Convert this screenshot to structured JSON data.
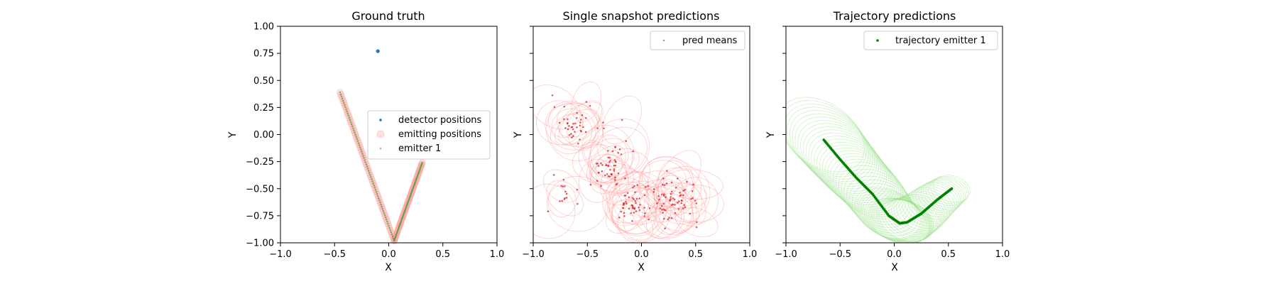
{
  "chart_data": [
    {
      "type": "scatter",
      "title": "Ground truth",
      "xlabel": "X",
      "ylabel": "Y",
      "xlim": [
        -1.0,
        1.0
      ],
      "ylim": [
        -1.0,
        1.0
      ],
      "xticks": [
        "−1.0",
        "−0.5",
        "0.0",
        "0.5",
        "1.0"
      ],
      "yticks": [
        "−1.00",
        "−0.75",
        "−0.50",
        "−0.25",
        "0.00",
        "0.25",
        "0.50",
        "0.75",
        "1.00"
      ],
      "legend_position": "center-right",
      "series": [
        {
          "name": "detector positions",
          "color": "#1f77b4",
          "points": [
            [
              -0.1,
              0.77
            ]
          ]
        },
        {
          "name": "emitting positions",
          "color": "#ff9896",
          "path": [
            [
              -0.45,
              0.39
            ],
            [
              0.05,
              -0.98
            ],
            [
              0.31,
              -0.26
            ]
          ]
        },
        {
          "name": "emitter 1",
          "color": "#2ca02c",
          "path": [
            [
              -0.45,
              0.39
            ],
            [
              0.05,
              -0.98
            ],
            [
              0.31,
              -0.26
            ]
          ]
        }
      ]
    },
    {
      "type": "scatter",
      "title": "Single snapshot predictions",
      "xlabel": "X",
      "ylabel": "Y",
      "xlim": [
        -1.0,
        1.0
      ],
      "ylim": [
        -1.0,
        1.0
      ],
      "xticks": [
        "−1.0",
        "−0.5",
        "0.0",
        "0.5",
        "1.0"
      ],
      "legend_position": "top-right",
      "series": [
        {
          "name": "pred means",
          "color": "#d62728",
          "clusters": [
            {
              "center": [
                -0.6,
                0.1
              ],
              "spread": [
                0.18,
                0.15
              ],
              "n": 40
            },
            {
              "center": [
                -0.3,
                -0.3
              ],
              "spread": [
                0.15,
                0.18
              ],
              "n": 50
            },
            {
              "center": [
                -0.1,
                -0.65
              ],
              "spread": [
                0.12,
                0.15
              ],
              "n": 45
            },
            {
              "center": [
                0.3,
                -0.6
              ],
              "spread": [
                0.2,
                0.18
              ],
              "n": 70
            },
            {
              "center": [
                -0.7,
                -0.5
              ],
              "spread": [
                0.1,
                0.1
              ],
              "n": 15
            }
          ]
        }
      ],
      "ellipse_color": "#ff9896"
    },
    {
      "type": "line",
      "title": "Trajectory predictions",
      "xlabel": "X",
      "ylabel": "Y",
      "xlim": [
        -1.0,
        1.0
      ],
      "ylim": [
        -1.0,
        1.0
      ],
      "xticks": [
        "−1.0",
        "−0.5",
        "0.0",
        "0.5",
        "1.0"
      ],
      "legend_position": "top-right",
      "series": [
        {
          "name": "trajectory emitter 1",
          "color": "#008000",
          "path": [
            [
              -0.65,
              -0.05
            ],
            [
              -0.5,
              -0.23
            ],
            [
              -0.35,
              -0.4
            ],
            [
              -0.2,
              -0.55
            ],
            [
              -0.05,
              -0.75
            ],
            [
              0.05,
              -0.82
            ],
            [
              0.12,
              -0.81
            ],
            [
              0.25,
              -0.73
            ],
            [
              0.4,
              -0.6
            ],
            [
              0.53,
              -0.5
            ]
          ]
        }
      ],
      "ellipse_color": "#98df8a"
    }
  ]
}
